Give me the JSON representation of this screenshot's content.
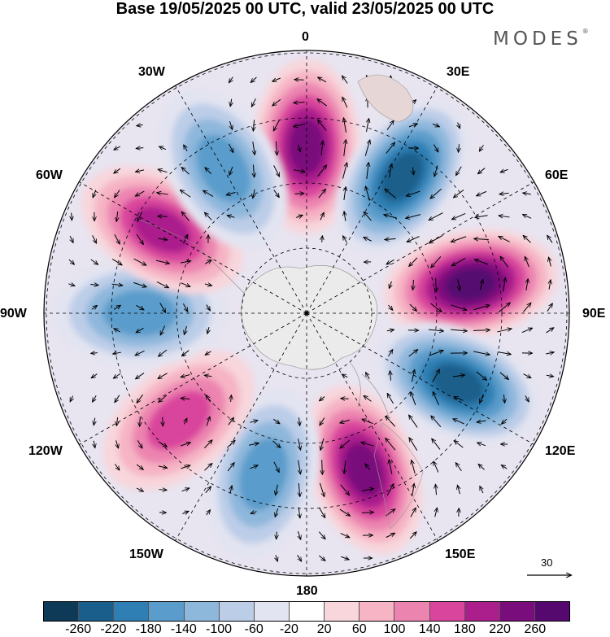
{
  "title": "Base 19/05/2025 00 UTC, valid 23/05/2025 00 UTC",
  "brand": "MODES",
  "brand_mark": "®",
  "longitude_labels": {
    "l0": "0",
    "l30e": "30E",
    "l60e": "60E",
    "l90e": "90E",
    "l120e": "120E",
    "l150e": "150E",
    "l180": "180",
    "l150w": "150W",
    "l120w": "120W",
    "l90w": "90W",
    "l60w": "60W",
    "l30w": "30W"
  },
  "reference_vector_label": "30",
  "colorbar": {
    "ticks": [
      "-260",
      "-220",
      "-180",
      "-140",
      "-100",
      "-60",
      "-20",
      "20",
      "60",
      "100",
      "140",
      "180",
      "220",
      "260"
    ],
    "colors": [
      "#0e3a57",
      "#1a5f8b",
      "#2f7fb4",
      "#5a9ccb",
      "#8eb7dc",
      "#bccde8",
      "#e3e4f1",
      "#ffffff",
      "#f8d6dc",
      "#f6b4c4",
      "#ec84b0",
      "#d9459c",
      "#ab1f8c",
      "#7a0d7c",
      "#55096f"
    ]
  },
  "anomaly_centers": [
    {
      "sign": "positive",
      "strength": 4,
      "lon": 0
    },
    {
      "sign": "negative",
      "strength": 4,
      "lon": 35
    },
    {
      "sign": "positive",
      "strength": 5,
      "lon": 80
    },
    {
      "sign": "negative",
      "strength": 4,
      "lon": 115
    },
    {
      "sign": "positive",
      "strength": 4,
      "lon": 160
    },
    {
      "sign": "negative",
      "strength": 2,
      "lon": -165
    },
    {
      "sign": "positive",
      "strength": 2,
      "lon": -130
    },
    {
      "sign": "negative",
      "strength": 2,
      "lon": -90
    },
    {
      "sign": "positive",
      "strength": 3,
      "lon": -60
    },
    {
      "sign": "negative",
      "strength": 2,
      "lon": -30
    }
  ]
}
